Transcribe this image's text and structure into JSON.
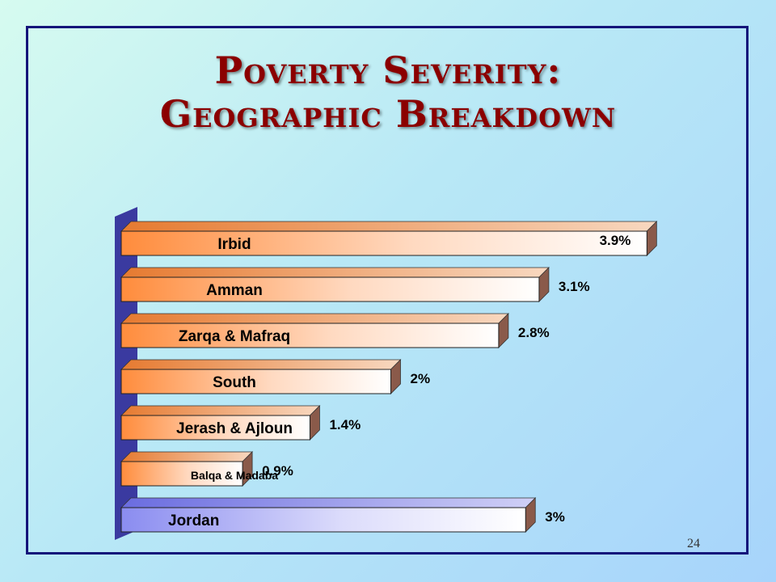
{
  "slide": {
    "title_line1": "Poverty Severity:",
    "title_line2": "Geographic Breakdown",
    "page_number": "24"
  },
  "chart_data": {
    "type": "bar",
    "orientation": "horizontal",
    "categories": [
      "Irbid",
      "Amman",
      "Zarqa & Mafraq",
      "South",
      "Jerash & Ajloun",
      "Balqa & Madaba",
      "Jordan"
    ],
    "values": [
      3.9,
      3.1,
      2.8,
      2.0,
      1.4,
      0.9,
      3.0
    ],
    "value_labels": [
      "3.9%",
      "3.1%",
      "2.8%",
      "2%",
      "1.4%",
      "0.9%",
      "3%"
    ],
    "xlim": [
      0,
      4
    ],
    "grid": false,
    "legend": "none",
    "colors": {
      "region_bar": "#ff8c3c",
      "national_bar": "#8a8cf0",
      "bar_highlight": "#ffffff",
      "side_face": "#8a5a4a",
      "axis_wall": "#3a3aa0"
    }
  }
}
